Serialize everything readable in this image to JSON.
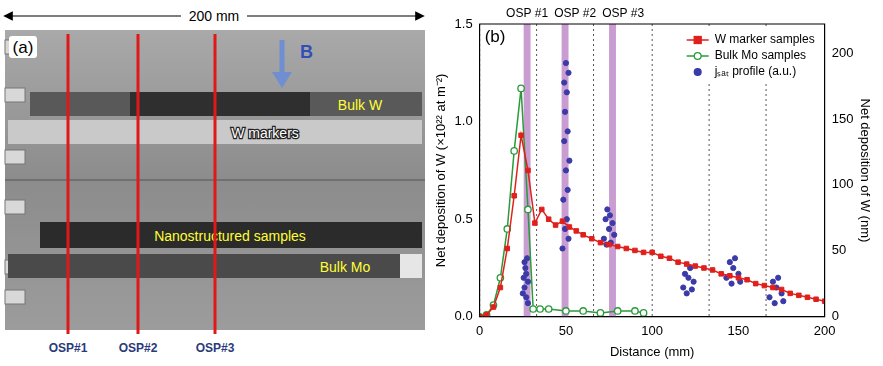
{
  "photo_panel": {
    "label": "(a)",
    "scale_bar": "200 mm",
    "field_arrow": "B",
    "samples": [
      "Bulk W",
      "W markers",
      "Nanostructured samples",
      "Bulk Mo"
    ],
    "osp_lines": [
      "OSP#1",
      "OSP#2",
      "OSP#3"
    ]
  },
  "chart_data": {
    "type": "line",
    "panel_label": "(b)",
    "x_label": "Distance (mm)",
    "y_label": "Net deposition of W (×10²² at m⁻²)",
    "y2_label": "Net deposition of W (nm)",
    "xlim": [
      0,
      200
    ],
    "xticks": [
      0,
      50,
      100,
      150,
      200
    ],
    "ylim": [
      0,
      1.5
    ],
    "yticks": [
      {
        "value": 0,
        "label": "0.0"
      },
      0.5,
      {
        "value": 1,
        "label": "1.0"
      },
      1.5
    ],
    "y2lim": [
      0,
      222
    ],
    "y2ticks": [
      0,
      50,
      100,
      150,
      200
    ],
    "grid": false,
    "legend": "upper right",
    "series": [
      {
        "name": "W marker samples",
        "color": "#e0201c",
        "marker": "square",
        "line_style": "solid",
        "x": [
          0,
          4,
          8,
          12,
          16,
          20,
          24,
          28,
          32,
          36,
          40,
          44,
          48,
          52,
          56,
          60,
          65,
          70,
          75,
          80,
          85,
          90,
          95,
          100,
          105,
          110,
          115,
          120,
          125,
          130,
          135,
          140,
          145,
          150,
          155,
          160,
          165,
          170,
          175,
          180,
          185,
          190,
          195,
          200
        ],
        "values": [
          0,
          0.01,
          0.05,
          0.15,
          0.35,
          0.62,
          0.93,
          0.75,
          0.48,
          0.55,
          0.5,
          0.47,
          0.49,
          0.46,
          0.44,
          0.42,
          0.4,
          0.38,
          0.37,
          0.36,
          0.35,
          0.34,
          0.33,
          0.33,
          0.31,
          0.3,
          0.28,
          0.27,
          0.26,
          0.25,
          0.24,
          0.22,
          0.21,
          0.2,
          0.19,
          0.17,
          0.16,
          0.15,
          0.14,
          0.12,
          0.11,
          0.1,
          0.09,
          0.08
        ]
      },
      {
        "name": "Bulk Mo samples",
        "color": "#2a9a3a",
        "marker": "open_circle",
        "line_style": "solid",
        "x": [
          0,
          4,
          8,
          12,
          16,
          20,
          24,
          28,
          31,
          35,
          40,
          50,
          60,
          70,
          80,
          90,
          95
        ],
        "values": [
          0,
          0.01,
          0.06,
          0.2,
          0.45,
          0.85,
          1.17,
          0.55,
          0.04,
          0.04,
          0.04,
          0.03,
          0.03,
          0.02,
          0.03,
          0.03,
          0.02
        ]
      },
      {
        "name": "jₛₐₜ profile (a.u.)",
        "color": "#3b3ba8",
        "type": "scatter",
        "marker": "circle",
        "x": [
          25,
          25.5,
          26,
          26,
          26.5,
          27,
          27,
          27.5,
          28,
          28,
          48,
          48.5,
          49,
          49,
          49.5,
          49.5,
          50,
          50,
          50.5,
          50.5,
          51,
          51,
          51.5,
          51.5,
          52,
          72,
          73,
          73.5,
          74,
          75,
          75.5,
          76,
          77,
          78,
          118,
          119,
          120,
          121,
          122,
          123,
          124,
          143,
          145,
          146,
          147,
          148,
          150,
          151,
          168,
          170,
          171,
          172,
          173,
          175,
          176
        ],
        "values": [
          0.12,
          0.2,
          0.28,
          0.15,
          0.25,
          0.1,
          0.22,
          0.3,
          0.18,
          0.07,
          0.35,
          0.6,
          0.9,
          1.2,
          0.45,
          1.05,
          1.3,
          0.75,
          1.15,
          0.5,
          0.95,
          0.65,
          0.4,
          1.25,
          0.8,
          0.4,
          0.5,
          0.37,
          0.55,
          0.45,
          0.52,
          0.38,
          0.48,
          0.42,
          0.15,
          0.22,
          0.12,
          0.2,
          0.25,
          0.14,
          0.18,
          0.2,
          0.28,
          0.17,
          0.25,
          0.3,
          0.22,
          0.18,
          0.1,
          0.18,
          0.07,
          0.15,
          0.2,
          0.12,
          0.08
        ]
      }
    ],
    "osp_bands": [
      {
        "label": "OSP #1",
        "from": 25.5,
        "to": 29.5
      },
      {
        "label": "OSP #2",
        "from": 47.5,
        "to": 51.5
      },
      {
        "label": "OSP #3",
        "from": 75,
        "to": 79
      }
    ],
    "osp_color": "#b77cc2",
    "tile_boundaries": [
      0,
      33,
      66,
      100,
      133,
      166
    ]
  }
}
